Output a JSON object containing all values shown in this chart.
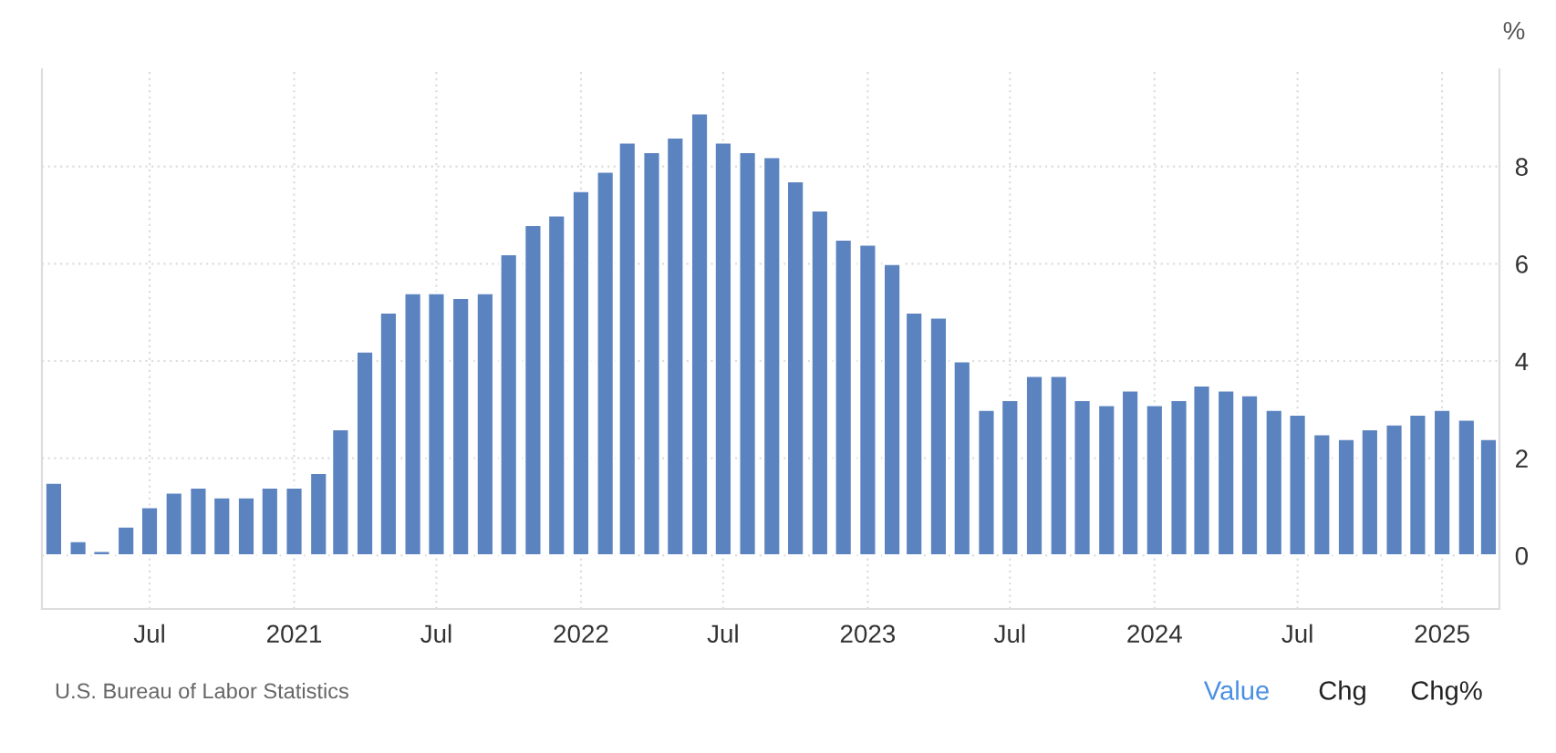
{
  "chart_data": {
    "type": "bar",
    "ylabel": "%",
    "color": "#5b83c0",
    "x": [
      "2020-03",
      "2020-04",
      "2020-05",
      "2020-06",
      "2020-07",
      "2020-08",
      "2020-09",
      "2020-10",
      "2020-11",
      "2020-12",
      "2021-01",
      "2021-02",
      "2021-03",
      "2021-04",
      "2021-05",
      "2021-06",
      "2021-07",
      "2021-08",
      "2021-09",
      "2021-10",
      "2021-11",
      "2021-12",
      "2022-01",
      "2022-02",
      "2022-03",
      "2022-04",
      "2022-05",
      "2022-06",
      "2022-07",
      "2022-08",
      "2022-09",
      "2022-10",
      "2022-11",
      "2022-12",
      "2023-01",
      "2023-02",
      "2023-03",
      "2023-04",
      "2023-05",
      "2023-06",
      "2023-07",
      "2023-08",
      "2023-09",
      "2023-10",
      "2023-11",
      "2023-12",
      "2024-01",
      "2024-02",
      "2024-03",
      "2024-04",
      "2024-05",
      "2024-06",
      "2024-07",
      "2024-08",
      "2024-09",
      "2024-10",
      "2024-11",
      "2024-12",
      "2025-01",
      "2025-02",
      "2025-03"
    ],
    "values": [
      1.5,
      0.3,
      0.1,
      0.6,
      1.0,
      1.3,
      1.4,
      1.2,
      1.2,
      1.4,
      1.4,
      1.7,
      2.6,
      4.2,
      5.0,
      5.4,
      5.4,
      5.3,
      5.4,
      6.2,
      6.8,
      7.0,
      7.5,
      7.9,
      8.5,
      8.3,
      8.6,
      9.1,
      8.5,
      8.3,
      8.2,
      7.7,
      7.1,
      6.5,
      6.4,
      6.0,
      5.0,
      4.9,
      4.0,
      3.0,
      3.2,
      3.7,
      3.7,
      3.2,
      3.1,
      3.4,
      3.1,
      3.2,
      3.5,
      3.4,
      3.3,
      3.0,
      2.9,
      2.5,
      2.4,
      2.6,
      2.7,
      2.9,
      3.0,
      2.8,
      2.4
    ],
    "xlim": [
      "2020-02-15",
      "2025-03-15"
    ],
    "xticks": [
      {
        "value": "2020-07",
        "label": "Jul"
      },
      {
        "value": "2021-01",
        "label": "2021"
      },
      {
        "value": "2021-07",
        "label": "Jul"
      },
      {
        "value": "2022-01",
        "label": "2022"
      },
      {
        "value": "2022-07",
        "label": "Jul"
      },
      {
        "value": "2023-01",
        "label": "2023"
      },
      {
        "value": "2023-07",
        "label": "Jul"
      },
      {
        "value": "2024-01",
        "label": "2024"
      },
      {
        "value": "2024-07",
        "label": "Jul"
      },
      {
        "value": "2025-01",
        "label": "2025"
      }
    ],
    "ylim": [
      -1.1,
      10
    ],
    "yticks": [
      0,
      2,
      4,
      6,
      8
    ],
    "grid": true,
    "annotations": [
      "U.S. Bureau of Labor Statistics",
      "Value",
      "Chg",
      "Chg%"
    ]
  }
}
